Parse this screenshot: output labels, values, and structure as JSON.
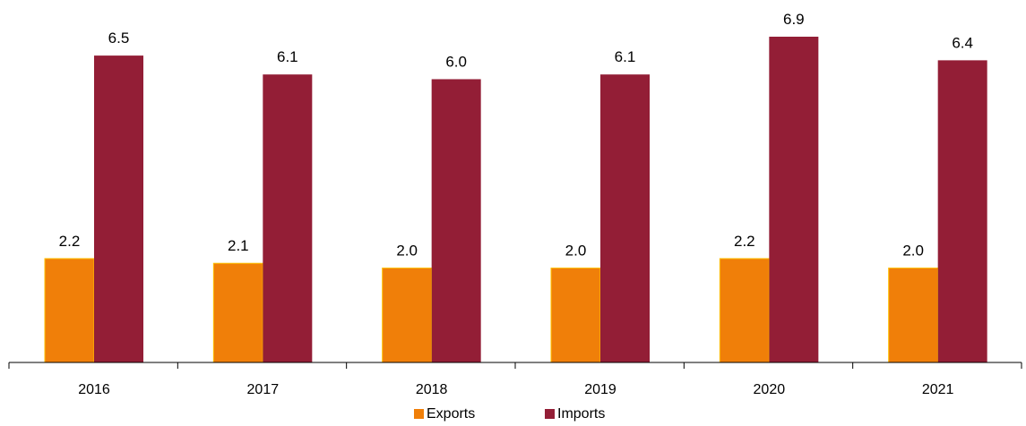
{
  "chart_data": {
    "type": "bar",
    "categories": [
      "2016",
      "2017",
      "2018",
      "2019",
      "2020",
      "2021"
    ],
    "series": [
      {
        "name": "Exports",
        "color": "#F07F09",
        "values": [
          2.2,
          2.1,
          2.0,
          2.0,
          2.2,
          2.0
        ]
      },
      {
        "name": "Imports",
        "color": "#931E36",
        "values": [
          6.5,
          6.1,
          6.0,
          6.1,
          6.9,
          6.4
        ]
      }
    ],
    "data_labels": {
      "Exports": [
        "2.2",
        "2.1",
        "2.0",
        "2.0",
        "2.2",
        "2.0"
      ],
      "Imports": [
        "6.5",
        "6.1",
        "6.0",
        "6.1",
        "6.9",
        "6.4"
      ]
    },
    "ylim": [
      0,
      6.9
    ],
    "grid": false,
    "legend_position": "bottom",
    "title": "",
    "xlabel": "",
    "ylabel": ""
  }
}
